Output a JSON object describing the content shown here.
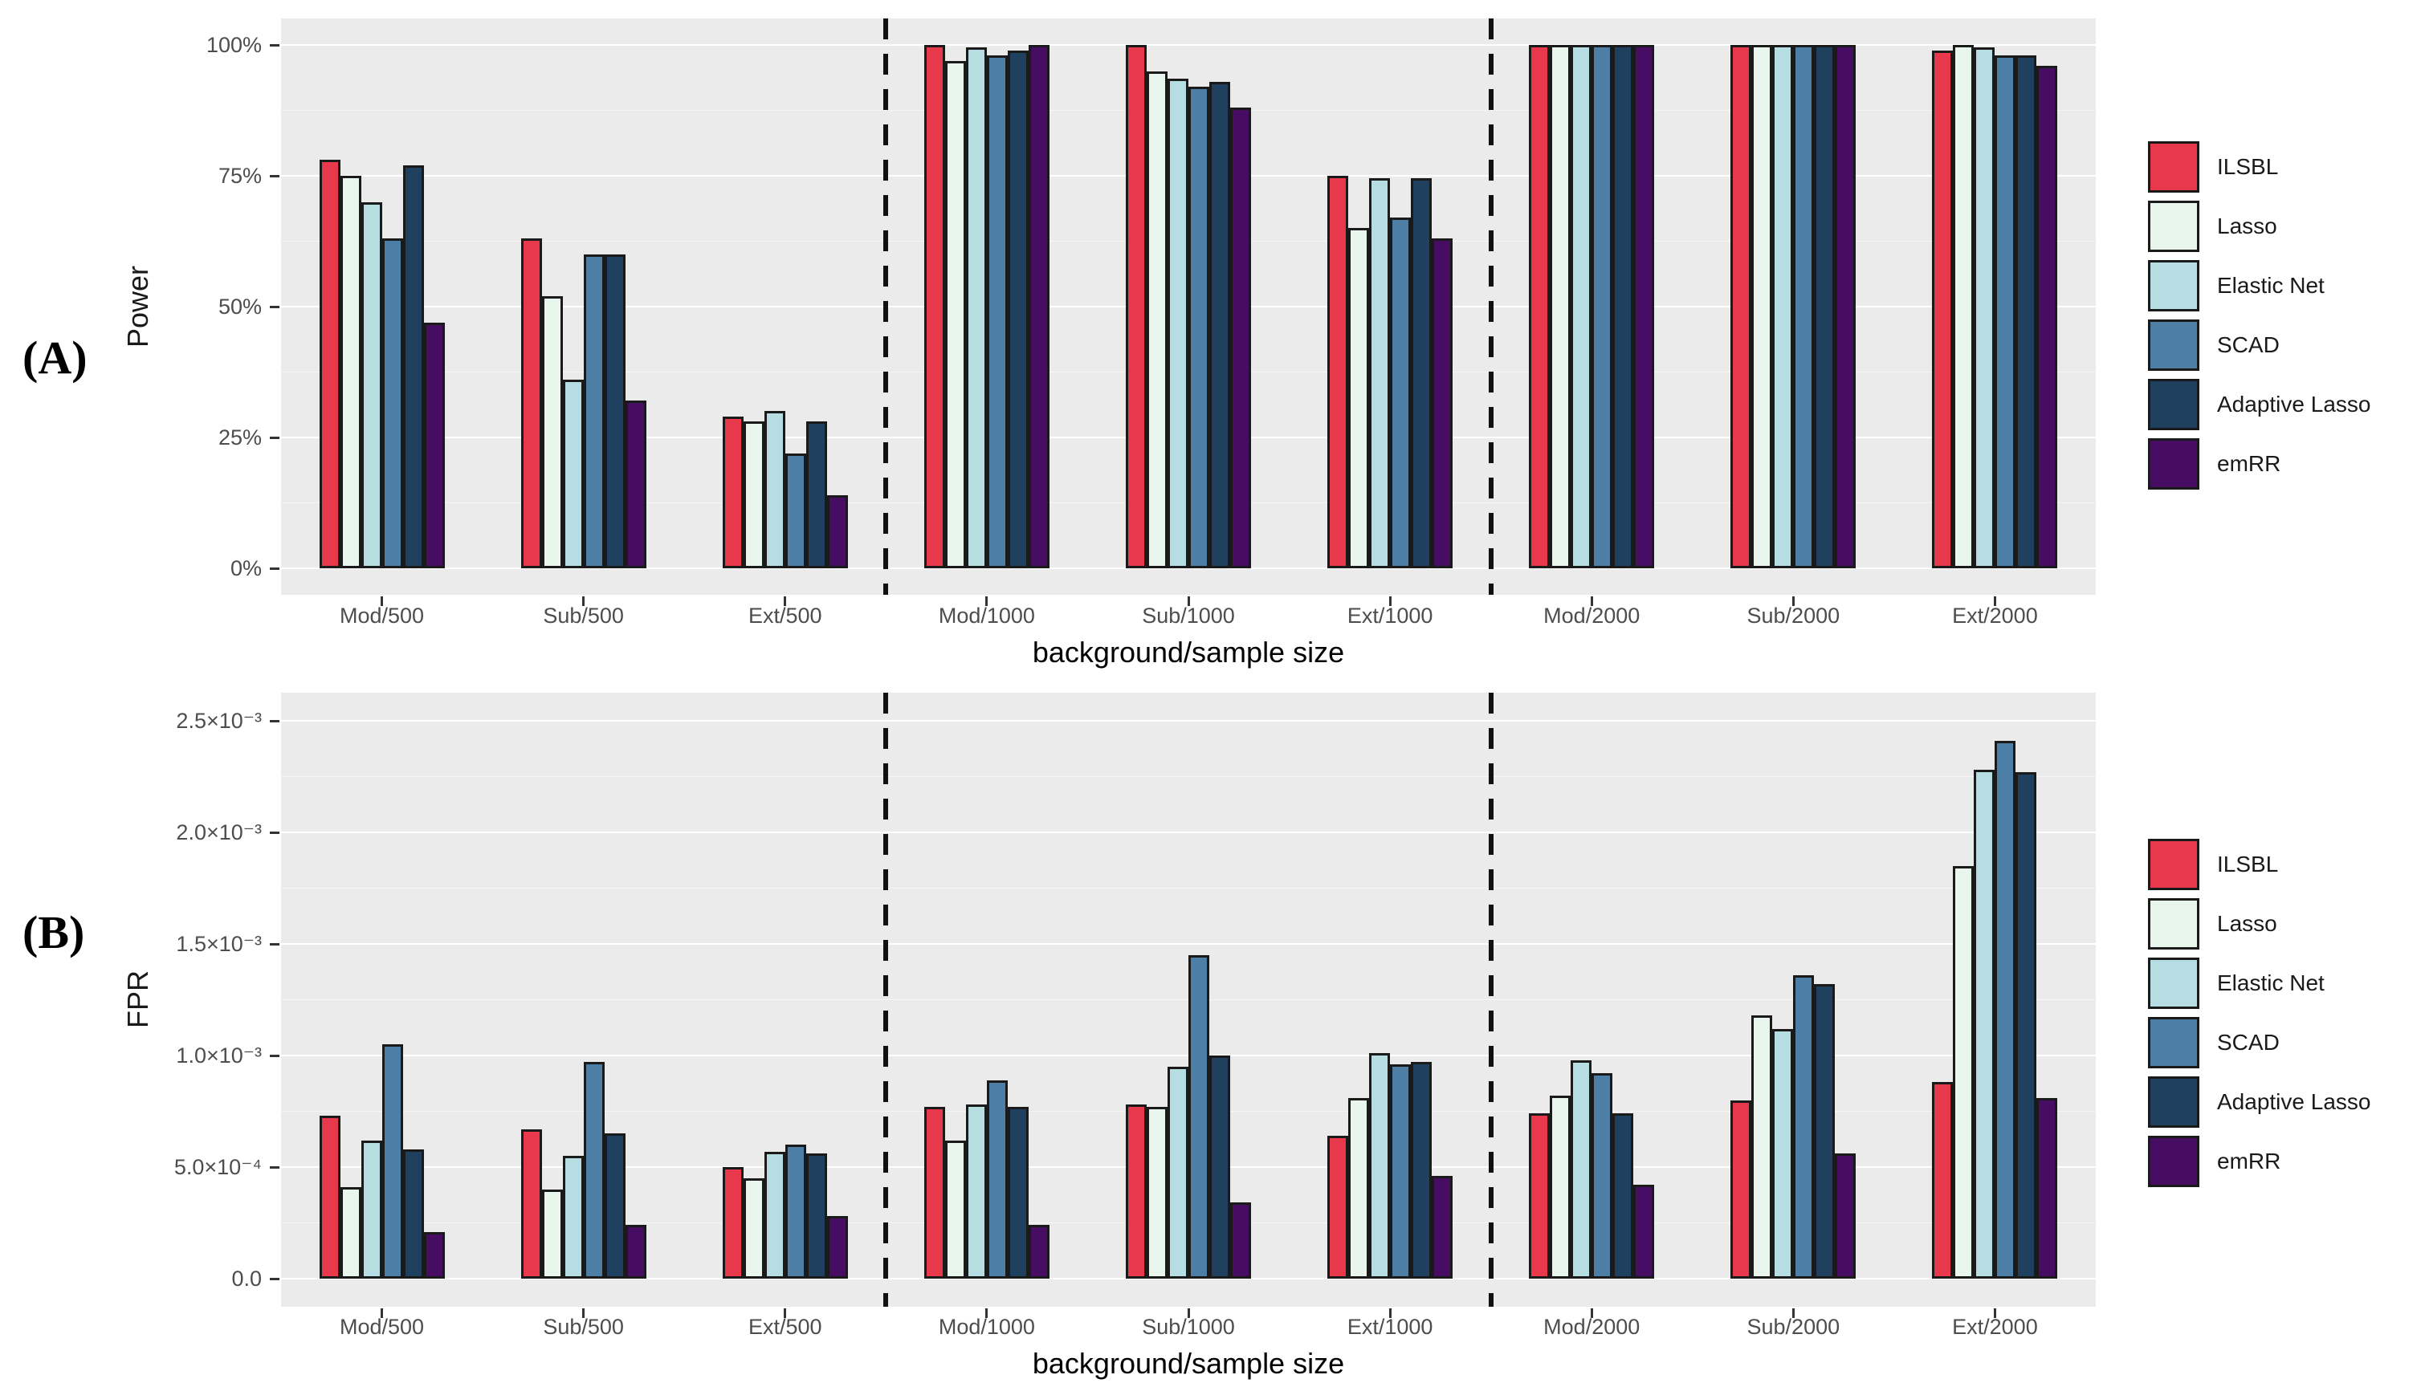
{
  "chart_data": [
    {
      "type": "bar",
      "panel_label": "(A)",
      "ylabel": "Power",
      "xlabel": "background/sample size",
      "legend_position": "right",
      "panel_background": "#ebebeb",
      "gridline_color": "#ffffff",
      "categories": [
        "Mod/500",
        "Sub/500",
        "Ext/500",
        "Mod/1000",
        "Sub/1000",
        "Ext/1000",
        "Mod/2000",
        "Sub/2000",
        "Ext/2000"
      ],
      "series": [
        {
          "name": "ILSBL",
          "color": "#e8384b",
          "values": [
            78,
            63,
            29,
            100,
            100,
            75,
            100,
            100,
            99
          ]
        },
        {
          "name": "Lasso",
          "color": "#e9f6ee",
          "values": [
            75,
            52,
            28,
            97,
            95,
            65,
            100,
            100,
            100
          ]
        },
        {
          "name": "Elastic Net",
          "color": "#b5dde2",
          "values": [
            70,
            36,
            30,
            99.5,
            93.5,
            74.5,
            100,
            100,
            99.5
          ]
        },
        {
          "name": "SCAD",
          "color": "#4c7ea6",
          "values": [
            63,
            60,
            22,
            98,
            92,
            67,
            100,
            100,
            98
          ]
        },
        {
          "name": "Adaptive Lasso",
          "color": "#20405f",
          "values": [
            77,
            60,
            28,
            99,
            93,
            74.5,
            100,
            100,
            98
          ]
        },
        {
          "name": "emRR",
          "color": "#460d63",
          "values": [
            47,
            32,
            14,
            100,
            88,
            63,
            100,
            100,
            96
          ]
        }
      ],
      "ylim": [
        0,
        100
      ],
      "yticks": {
        "values": [
          0,
          25,
          50,
          75,
          100
        ],
        "labels": [
          "0%",
          "25%",
          "50%",
          "75%",
          "100%"
        ]
      },
      "minor_ticks": [
        12.5,
        37.5,
        62.5,
        87.5
      ],
      "separators_after_category": [
        3,
        6
      ]
    },
    {
      "type": "bar",
      "panel_label": "(B)",
      "ylabel": "FPR",
      "xlabel": "background/sample size",
      "legend_position": "right",
      "panel_background": "#ebebeb",
      "gridline_color": "#ffffff",
      "categories": [
        "Mod/500",
        "Sub/500",
        "Ext/500",
        "Mod/1000",
        "Sub/1000",
        "Ext/1000",
        "Mod/2000",
        "Sub/2000",
        "Ext/2000"
      ],
      "series": [
        {
          "name": "ILSBL",
          "color": "#e8384b",
          "values": [
            0.00073,
            0.00067,
            0.0005,
            0.00077,
            0.00078,
            0.00064,
            0.00074,
            0.0008,
            0.00088
          ]
        },
        {
          "name": "Lasso",
          "color": "#e9f6ee",
          "values": [
            0.00041,
            0.0004,
            0.00045,
            0.00062,
            0.00077,
            0.00081,
            0.00082,
            0.00118,
            0.00185
          ]
        },
        {
          "name": "Elastic Net",
          "color": "#b5dde2",
          "values": [
            0.00062,
            0.00055,
            0.00057,
            0.00078,
            0.00095,
            0.00101,
            0.00098,
            0.00112,
            0.00228
          ]
        },
        {
          "name": "SCAD",
          "color": "#4c7ea6",
          "values": [
            0.00105,
            0.00097,
            0.0006,
            0.00089,
            0.00145,
            0.00096,
            0.00092,
            0.00136,
            0.00241
          ]
        },
        {
          "name": "Adaptive Lasso",
          "color": "#20405f",
          "values": [
            0.00058,
            0.00065,
            0.00056,
            0.00077,
            0.001,
            0.00097,
            0.00074,
            0.00132,
            0.00227
          ]
        },
        {
          "name": "emRR",
          "color": "#460d63",
          "values": [
            0.00021,
            0.00024,
            0.00028,
            0.00024,
            0.00034,
            0.00046,
            0.00042,
            0.00056,
            0.00081
          ]
        }
      ],
      "ylim": [
        0,
        0.0025
      ],
      "yticks": {
        "values": [
          0,
          0.0005,
          0.001,
          0.0015,
          0.002,
          0.0025
        ],
        "labels": [
          "0.0",
          "5.0×10⁻⁴",
          "1.0×10⁻³",
          "1.5×10⁻³",
          "2.0×10⁻³",
          "2.5×10⁻³"
        ]
      },
      "minor_ticks": [
        0.00025,
        0.00075,
        0.00125,
        0.00175,
        0.00225
      ],
      "separators_after_category": [
        3,
        6
      ]
    }
  ]
}
